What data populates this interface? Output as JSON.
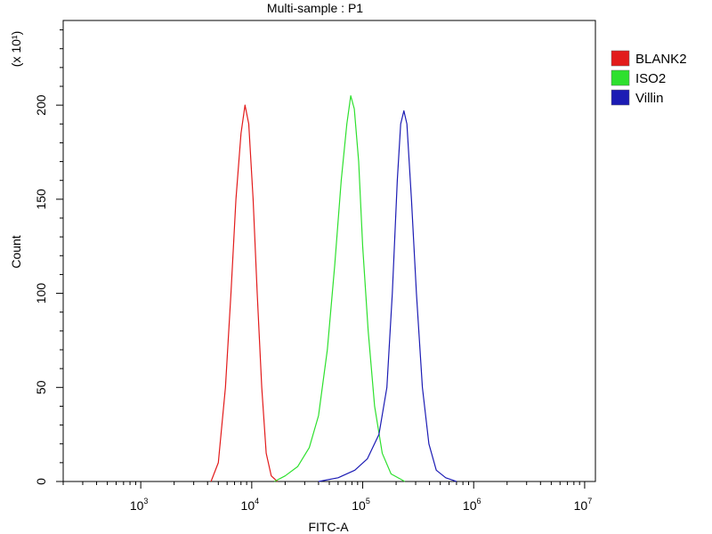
{
  "chart_data": {
    "type": "line",
    "title": "Multi-sample : P1",
    "xlabel": "FITC-A",
    "ylabel": "Count",
    "y_multiplier": "(x 10¹)",
    "x_scale": "log",
    "xlim": [
      200,
      12500000
    ],
    "ylim": [
      0,
      245
    ],
    "x_ticks": [
      {
        "value": 1000,
        "base": "10",
        "exp": "3"
      },
      {
        "value": 10000,
        "base": "10",
        "exp": "4"
      },
      {
        "value": 100000,
        "base": "10",
        "exp": "5"
      },
      {
        "value": 1000000,
        "base": "10",
        "exp": "6"
      },
      {
        "value": 10000000,
        "base": "10",
        "exp": "7"
      }
    ],
    "y_ticks": [
      {
        "value": 0,
        "label": "0"
      },
      {
        "value": 50,
        "label": "50"
      },
      {
        "value": 100,
        "label": "100"
      },
      {
        "value": 150,
        "label": "150"
      },
      {
        "value": 200,
        "label": "200"
      }
    ],
    "legend_position": "right",
    "series": [
      {
        "name": "BLANK2",
        "color": "#e21b1b",
        "points": [
          [
            4300,
            0
          ],
          [
            5000,
            10
          ],
          [
            5800,
            50
          ],
          [
            6500,
            100
          ],
          [
            7200,
            150
          ],
          [
            8000,
            185
          ],
          [
            8700,
            200
          ],
          [
            9400,
            190
          ],
          [
            10300,
            150
          ],
          [
            11200,
            100
          ],
          [
            12300,
            50
          ],
          [
            13500,
            15
          ],
          [
            15000,
            3
          ],
          [
            17000,
            0
          ]
        ]
      },
      {
        "name": "ISO2",
        "color": "#2ee02e",
        "points": [
          [
            16000,
            0
          ],
          [
            20000,
            3
          ],
          [
            26000,
            8
          ],
          [
            33000,
            18
          ],
          [
            40000,
            35
          ],
          [
            48000,
            70
          ],
          [
            56000,
            115
          ],
          [
            64000,
            160
          ],
          [
            72000,
            190
          ],
          [
            78000,
            205
          ],
          [
            84000,
            198
          ],
          [
            92000,
            170
          ],
          [
            100000,
            125
          ],
          [
            112000,
            80
          ],
          [
            128000,
            40
          ],
          [
            150000,
            15
          ],
          [
            180000,
            4
          ],
          [
            240000,
            0
          ]
        ]
      },
      {
        "name": "Villin",
        "color": "#1c1cb4",
        "points": [
          [
            40000,
            0
          ],
          [
            60000,
            2
          ],
          [
            85000,
            6
          ],
          [
            110000,
            12
          ],
          [
            140000,
            25
          ],
          [
            165000,
            50
          ],
          [
            185000,
            100
          ],
          [
            205000,
            160
          ],
          [
            220000,
            190
          ],
          [
            235000,
            197
          ],
          [
            250000,
            190
          ],
          [
            275000,
            150
          ],
          [
            305000,
            100
          ],
          [
            345000,
            50
          ],
          [
            395000,
            20
          ],
          [
            460000,
            6
          ],
          [
            560000,
            2
          ],
          [
            700000,
            0
          ]
        ]
      }
    ]
  }
}
